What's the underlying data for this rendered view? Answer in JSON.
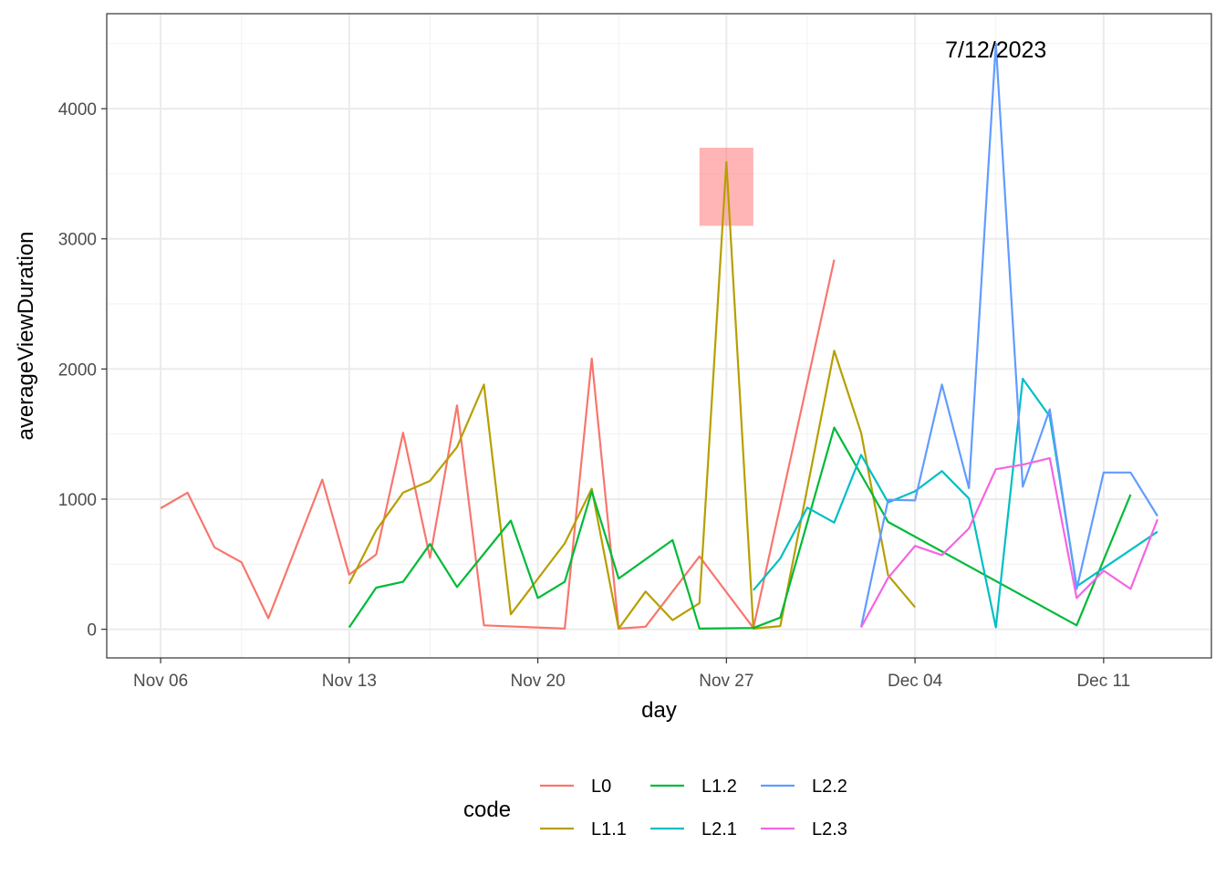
{
  "chart_data": {
    "type": "line",
    "xlabel": "day",
    "ylabel": "averageViewDuration",
    "x_ticks": [
      "Nov 06",
      "Nov 13",
      "Nov 20",
      "Nov 27",
      "Dec 04",
      "Dec 11"
    ],
    "x_tick_dates": [
      "2023-11-06",
      "2023-11-13",
      "2023-11-20",
      "2023-11-27",
      "2023-12-04",
      "2023-12-11"
    ],
    "xlim": [
      "2023-11-04",
      "2023-12-15"
    ],
    "y_ticks": [
      0,
      1000,
      2000,
      3000,
      4000
    ],
    "ylim": [
      -220,
      4730
    ],
    "grid": true,
    "legend": {
      "title": "code",
      "position": "bottom"
    },
    "annotation": {
      "text": "7/12/2023",
      "x": "2023-12-07",
      "y": 4450
    },
    "highlight_box": {
      "x0": "2023-11-26",
      "x1": "2023-11-28",
      "y0": 3100,
      "y1": 3700,
      "color": "#ff6b6b"
    },
    "series": [
      {
        "name": "L0",
        "color": "#F8766D",
        "points": [
          [
            "2023-11-06",
            930
          ],
          [
            "2023-11-07",
            1050
          ],
          [
            "2023-11-08",
            630
          ],
          [
            "2023-11-09",
            515
          ],
          [
            "2023-11-10",
            85
          ],
          [
            "2023-11-12",
            1150
          ],
          [
            "2023-11-13",
            420
          ],
          [
            "2023-11-14",
            575
          ],
          [
            "2023-11-15",
            1510
          ],
          [
            "2023-11-16",
            550
          ],
          [
            "2023-11-17",
            1720
          ],
          [
            "2023-11-18",
            30
          ],
          [
            "2023-11-21",
            5
          ],
          [
            "2023-11-22",
            2080
          ],
          [
            "2023-11-23",
            5
          ],
          [
            "2023-11-24",
            20
          ],
          [
            "2023-11-26",
            560
          ],
          [
            "2023-11-28",
            10
          ],
          [
            "2023-12-01",
            2840
          ]
        ]
      },
      {
        "name": "L1.1",
        "color": "#B79F00",
        "points": [
          [
            "2023-11-13",
            350
          ],
          [
            "2023-11-14",
            760
          ],
          [
            "2023-11-15",
            1050
          ],
          [
            "2023-11-16",
            1140
          ],
          [
            "2023-11-17",
            1400
          ],
          [
            "2023-11-18",
            1880
          ],
          [
            "2023-11-19",
            115
          ],
          [
            "2023-11-21",
            660
          ],
          [
            "2023-11-22",
            1080
          ],
          [
            "2023-11-23",
            5
          ],
          [
            "2023-11-24",
            290
          ],
          [
            "2023-11-25",
            70
          ],
          [
            "2023-11-26",
            200
          ],
          [
            "2023-11-27",
            3590
          ],
          [
            "2023-11-28",
            5
          ],
          [
            "2023-11-29",
            25
          ],
          [
            "2023-12-01",
            2140
          ],
          [
            "2023-12-02",
            1510
          ],
          [
            "2023-12-03",
            415
          ],
          [
            "2023-12-04",
            170
          ]
        ]
      },
      {
        "name": "L1.2",
        "color": "#00BA38",
        "points": [
          [
            "2023-11-13",
            15
          ],
          [
            "2023-11-14",
            320
          ],
          [
            "2023-11-15",
            365
          ],
          [
            "2023-11-16",
            655
          ],
          [
            "2023-11-17",
            325
          ],
          [
            "2023-11-19",
            835
          ],
          [
            "2023-11-20",
            240
          ],
          [
            "2023-11-21",
            365
          ],
          [
            "2023-11-22",
            1060
          ],
          [
            "2023-11-23",
            390
          ],
          [
            "2023-11-25",
            685
          ],
          [
            "2023-11-26",
            5
          ],
          [
            "2023-11-28",
            10
          ],
          [
            "2023-11-29",
            90
          ],
          [
            "2023-12-01",
            1550
          ],
          [
            "2023-12-03",
            825
          ],
          [
            "2023-12-10",
            30
          ],
          [
            "2023-12-12",
            1035
          ]
        ]
      },
      {
        "name": "L2.1",
        "color": "#00BFC4",
        "points": [
          [
            "2023-11-28",
            300
          ],
          [
            "2023-11-29",
            545
          ],
          [
            "2023-11-30",
            935
          ],
          [
            "2023-12-01",
            820
          ],
          [
            "2023-12-02",
            1340
          ],
          [
            "2023-12-03",
            975
          ],
          [
            "2023-12-04",
            1060
          ],
          [
            "2023-12-05",
            1215
          ],
          [
            "2023-12-06",
            1005
          ],
          [
            "2023-12-07",
            15
          ],
          [
            "2023-12-08",
            1925
          ],
          [
            "2023-12-09",
            1635
          ],
          [
            "2023-12-10",
            330
          ],
          [
            "2023-12-13",
            750
          ]
        ]
      },
      {
        "name": "L2.2",
        "color": "#619CFF",
        "points": [
          [
            "2023-12-02",
            15
          ],
          [
            "2023-12-03",
            995
          ],
          [
            "2023-12-04",
            990
          ],
          [
            "2023-12-05",
            1880
          ],
          [
            "2023-12-06",
            1085
          ],
          [
            "2023-12-07",
            4500
          ],
          [
            "2023-12-08",
            1095
          ],
          [
            "2023-12-09",
            1690
          ],
          [
            "2023-12-10",
            310
          ],
          [
            "2023-12-11",
            1205
          ],
          [
            "2023-12-12",
            1205
          ],
          [
            "2023-12-13",
            870
          ]
        ]
      },
      {
        "name": "L2.3",
        "color": "#F564E3",
        "points": [
          [
            "2023-12-02",
            15
          ],
          [
            "2023-12-03",
            395
          ],
          [
            "2023-12-04",
            640
          ],
          [
            "2023-12-05",
            570
          ],
          [
            "2023-12-06",
            775
          ],
          [
            "2023-12-07",
            1230
          ],
          [
            "2023-12-08",
            1265
          ],
          [
            "2023-12-09",
            1315
          ],
          [
            "2023-12-10",
            240
          ],
          [
            "2023-12-11",
            450
          ],
          [
            "2023-12-12",
            310
          ],
          [
            "2023-12-13",
            845
          ]
        ]
      }
    ]
  }
}
